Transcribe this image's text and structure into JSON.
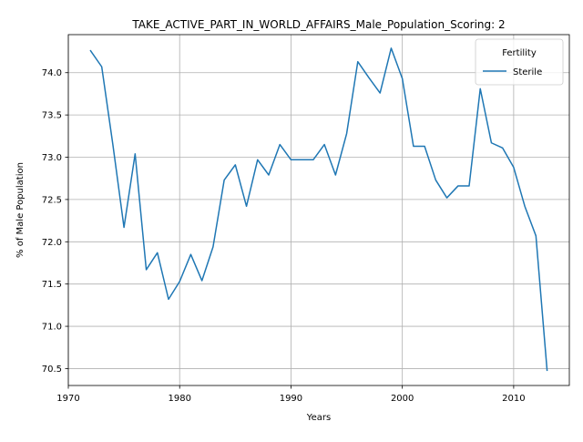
{
  "chart_data": {
    "type": "line",
    "title": "TAKE_ACTIVE_PART_IN_WORLD_AFFAIRS_Male_Population_Scoring: 2",
    "xlabel": "Years",
    "ylabel": "% of Male Population",
    "xlim": [
      1970,
      2015
    ],
    "ylim": [
      70.3,
      74.45
    ],
    "x_ticks": [
      1970,
      1980,
      1990,
      2000,
      2010
    ],
    "y_ticks": [
      70.5,
      71.0,
      71.5,
      72.0,
      72.5,
      73.0,
      73.5,
      74.0
    ],
    "x_tick_labels": [
      "1970",
      "1980",
      "1990",
      "2000",
      "2010"
    ],
    "y_tick_labels": [
      "70.5",
      "71.0",
      "71.5",
      "72.0",
      "72.5",
      "73.0",
      "73.5",
      "74.0"
    ],
    "grid": true,
    "legend": {
      "title": "Fertility",
      "placement": "top-right"
    },
    "series": [
      {
        "name": "Sterile",
        "color": "#1f77b4",
        "x": [
          1972,
          1973,
          1974,
          1975,
          1976,
          1977,
          1978,
          1979,
          1980,
          1981,
          1982,
          1983,
          1984,
          1985,
          1986,
          1987,
          1988,
          1989,
          1990,
          1991,
          1992,
          1993,
          1994,
          1995,
          1996,
          1997,
          1998,
          1999,
          2000,
          2001,
          2002,
          2003,
          2004,
          2005,
          2006,
          2007,
          2008,
          2009,
          2010,
          2011,
          2012,
          2013
        ],
        "y": [
          74.26,
          74.07,
          73.15,
          72.17,
          73.04,
          71.67,
          71.87,
          71.32,
          71.53,
          71.85,
          71.54,
          71.94,
          72.73,
          72.91,
          72.42,
          72.97,
          72.79,
          73.15,
          72.97,
          72.97,
          72.97,
          73.15,
          72.79,
          73.28,
          74.13,
          73.94,
          73.76,
          74.29,
          73.93,
          73.13,
          73.13,
          72.73,
          72.52,
          72.66,
          72.66,
          73.81,
          73.17,
          73.11,
          72.88,
          72.42,
          72.07,
          70.48
        ]
      }
    ]
  }
}
